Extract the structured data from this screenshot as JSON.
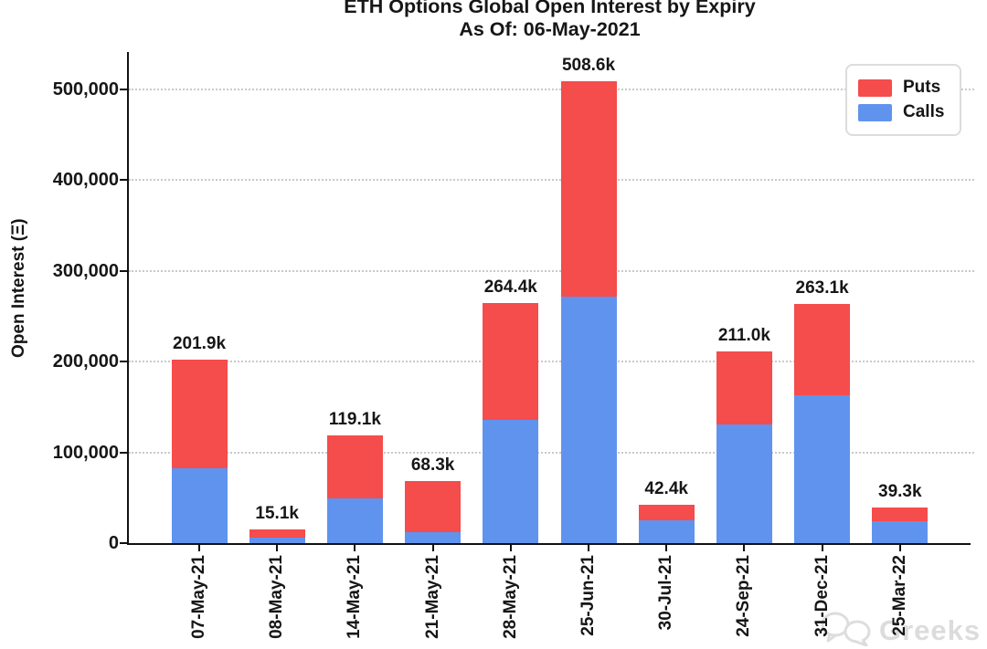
{
  "title": {
    "line1": "ETH Options Global Open Interest by Expiry",
    "line2": "As Of: 06-May-2021"
  },
  "y_axis": {
    "label": "Open Interest (Ξ)",
    "ticks": [
      "0",
      "100,000",
      "200,000",
      "300,000",
      "400,000",
      "500,000"
    ]
  },
  "legend": {
    "items": [
      {
        "label": "Puts",
        "color": "#f54c4c"
      },
      {
        "label": "Calls",
        "color": "#6093ee"
      }
    ]
  },
  "watermark": {
    "icon": "chat-bubbles-icon",
    "text": "Greeks"
  },
  "chart_data": {
    "type": "bar",
    "stacked": true,
    "title": "ETH Options Global Open Interest by Expiry",
    "subtitle": "As Of: 06-May-2021",
    "ylabel": "Open Interest (Ξ)",
    "xlabel": "",
    "ylim": [
      0,
      540000
    ],
    "grid": "horizontal dotted every 100,000",
    "legend_position": "upper right",
    "categories": [
      "07-May-21",
      "08-May-21",
      "14-May-21",
      "21-May-21",
      "28-May-21",
      "25-Jun-21",
      "30-Jul-21",
      "24-Sep-21",
      "31-Dec-21",
      "25-Mar-22"
    ],
    "series": [
      {
        "name": "Calls",
        "color": "#6093ee",
        "values": [
          82000,
          6000,
          49000,
          12400,
          136000,
          272000,
          25000,
          131000,
          163000,
          24400
        ]
      },
      {
        "name": "Puts",
        "color": "#f54c4c",
        "values": [
          119900,
          9100,
          70100,
          55900,
          128400,
          236600,
          17400,
          80000,
          100100,
          14900
        ]
      }
    ],
    "totals": [
      201900,
      15100,
      119100,
      68300,
      264400,
      508600,
      42400,
      211000,
      263100,
      39300
    ],
    "total_labels": [
      "201.9k",
      "15.1k",
      "119.1k",
      "68.3k",
      "264.4k",
      "508.6k",
      "42.4k",
      "211.0k",
      "263.1k",
      "39.3k"
    ]
  }
}
